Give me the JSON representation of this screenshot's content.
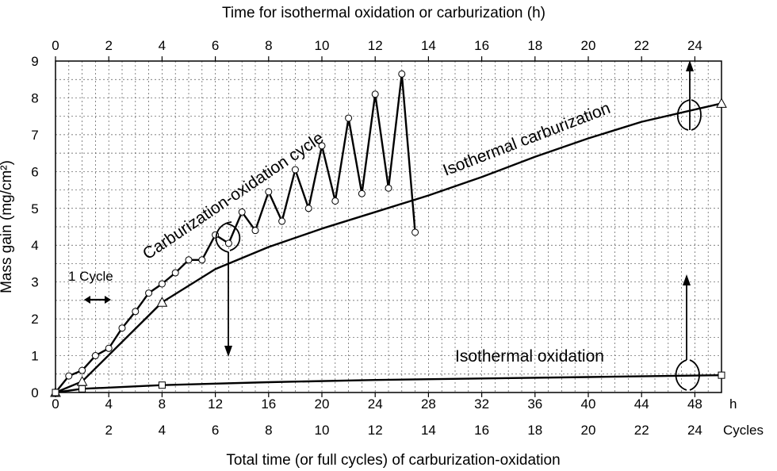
{
  "chart_data": {
    "type": "line",
    "top_axis": {
      "label": "Time for isothermal oxidation or carburization (h)",
      "ticks": [
        "0",
        "2",
        "4",
        "6",
        "8",
        "10",
        "12",
        "14",
        "16",
        "18",
        "20",
        "22",
        "24"
      ],
      "range": [
        0,
        25
      ]
    },
    "bottom_axis": {
      "label": "Total time (or full cycles) of carburization-oxidation",
      "hour_ticks": [
        "0",
        "4",
        "8",
        "12",
        "16",
        "20",
        "24",
        "28",
        "32",
        "36",
        "40",
        "44",
        "48"
      ],
      "hour_unit": "h",
      "cycle_ticks": [
        "2",
        "4",
        "6",
        "8",
        "10",
        "12",
        "14",
        "16",
        "18",
        "20",
        "22",
        "24"
      ],
      "cycle_unit": "Cycles",
      "range": [
        0,
        50
      ]
    },
    "y_axis": {
      "label": "Mass gain (mg/cm²)",
      "ticks": [
        "0",
        "1",
        "2",
        "3",
        "4",
        "5",
        "6",
        "7",
        "8",
        "9"
      ],
      "range": [
        0,
        9
      ]
    },
    "grid": true,
    "annotations": {
      "cycle_label": "1 Cycle",
      "cyclic_label": "Carburization-oxidation cycle",
      "carburization_label": "Isothermal carburization",
      "oxidation_label": "Isothermal oxidation"
    },
    "series": [
      {
        "marker": "circle",
        "x_axis": "bottom",
        "x": [
          0,
          1,
          2,
          3,
          4,
          5,
          6,
          7,
          8,
          9,
          10,
          11,
          12,
          13,
          14,
          15,
          16,
          17,
          18,
          19,
          20,
          21,
          22,
          23,
          24,
          25,
          26,
          27
        ],
        "y": [
          0,
          0.45,
          0.6,
          1.0,
          1.2,
          1.75,
          2.2,
          2.7,
          2.95,
          3.25,
          3.6,
          3.6,
          4.28,
          4.05,
          4.9,
          4.4,
          5.45,
          4.65,
          6.05,
          5.0,
          6.7,
          5.2,
          7.45,
          5.4,
          8.1,
          5.55,
          8.65,
          4.35
        ]
      },
      {
        "marker": "triangle",
        "x_axis": "top",
        "x": [
          0,
          1,
          4,
          6,
          8,
          10,
          12,
          14,
          16,
          18,
          20,
          22,
          25
        ],
        "y": [
          0,
          0.3,
          2.45,
          3.35,
          3.95,
          4.45,
          4.9,
          5.35,
          5.85,
          6.4,
          6.9,
          7.35,
          7.85
        ],
        "marked_x": [
          0,
          1,
          4,
          25
        ]
      },
      {
        "marker": "square",
        "x_axis": "top",
        "x": [
          0,
          1,
          4,
          8,
          12,
          16,
          20,
          25
        ],
        "y": [
          0,
          0.1,
          0.2,
          0.28,
          0.34,
          0.38,
          0.42,
          0.47
        ],
        "marked_x": [
          0,
          1,
          4,
          25
        ]
      }
    ]
  }
}
